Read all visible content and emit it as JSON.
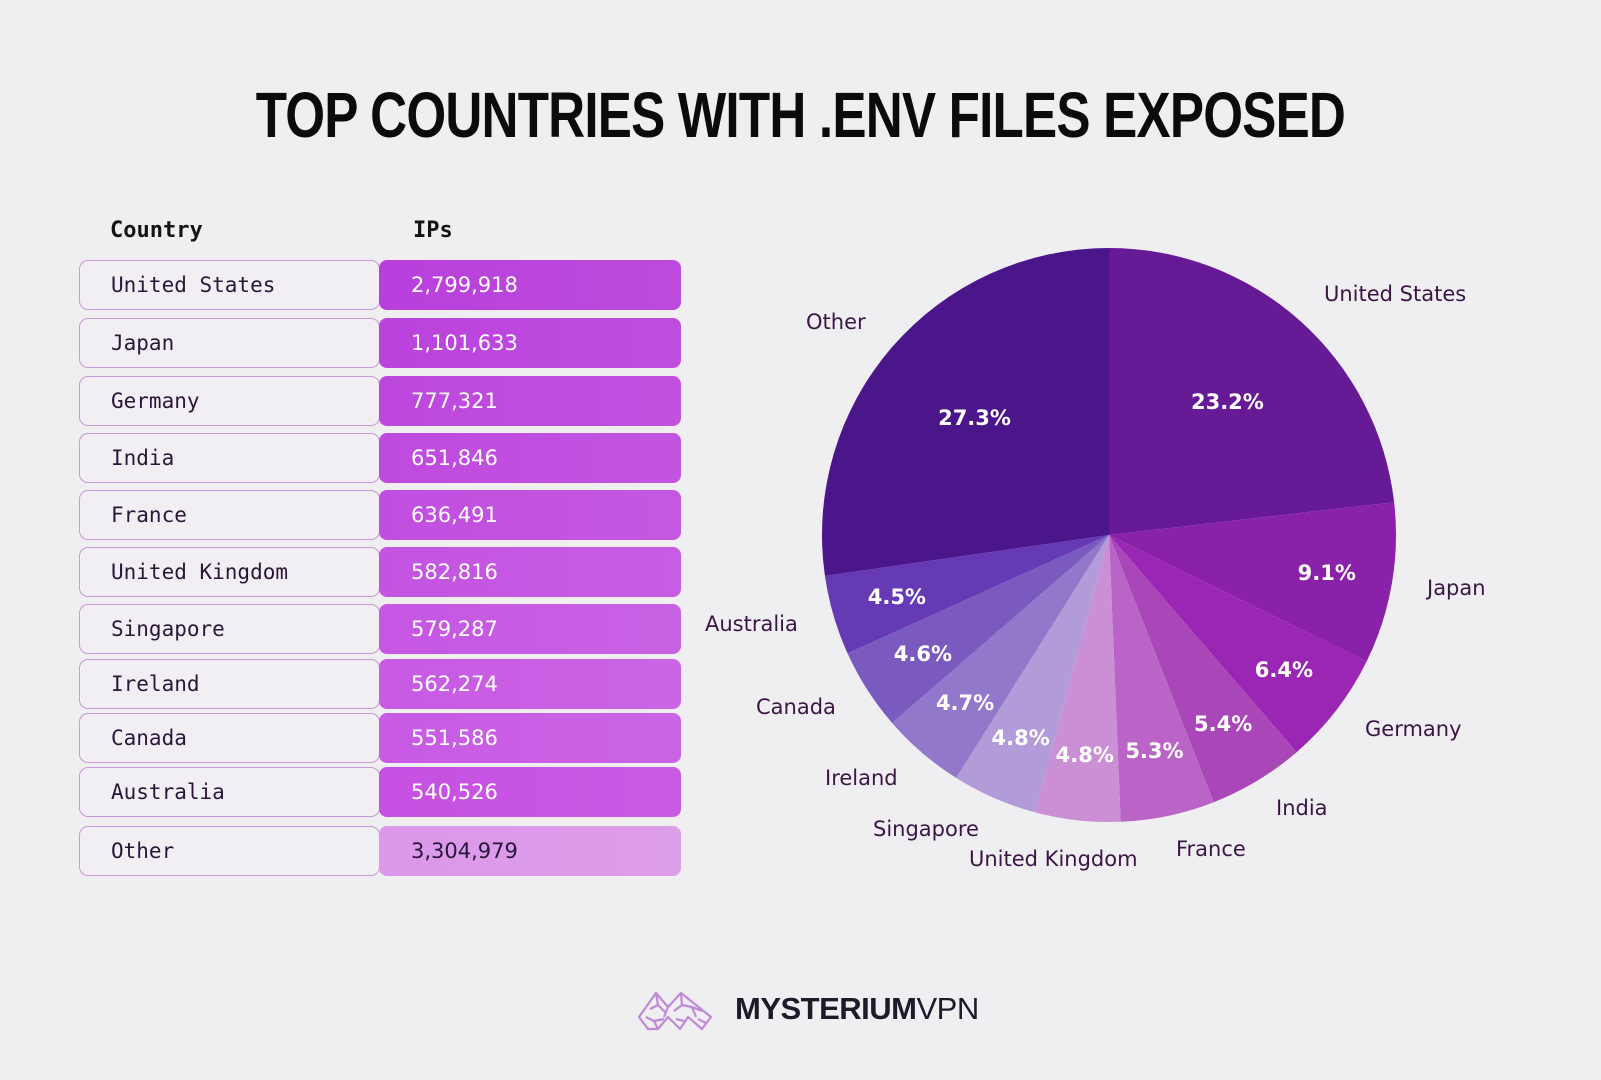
{
  "title": "TOP COUNTRIES WITH .ENV FILES EXPOSED",
  "table": {
    "headers": {
      "country": "Country",
      "ips": "IPs"
    },
    "rows": [
      {
        "country": "United States",
        "ips": "2,799,918",
        "color": "#b93fdc"
      },
      {
        "country": "Japan",
        "ips": "1,101,633",
        "color": "#bb42dd"
      },
      {
        "country": "Germany",
        "ips": "777,321",
        "color": "#bd47de"
      },
      {
        "country": "India",
        "ips": "651,846",
        "color": "#bf4adf"
      },
      {
        "country": "France",
        "ips": "636,491",
        "color": "#c14ee0"
      },
      {
        "country": "United Kingdom",
        "ips": "582,816",
        "color": "#c453e2"
      },
      {
        "country": "Singapore",
        "ips": "579,287",
        "color": "#c657e3"
      },
      {
        "country": "Ireland",
        "ips": "562,274",
        "color": "#c85ae4"
      },
      {
        "country": "Canada",
        "ips": "551,586",
        "color": "#c85ae4"
      },
      {
        "country": "Australia",
        "ips": "540,526",
        "color": "#c650e2"
      },
      {
        "country": "Other",
        "ips": "3,304,979",
        "color": "#dc98ea",
        "text_color": "#2a1638"
      }
    ]
  },
  "chart_data": {
    "type": "pie",
    "title": "TOP COUNTRIES WITH .ENV FILES EXPOSED",
    "start_angle_deg": 90,
    "direction": "clockwise",
    "categories": [
      "United States",
      "Japan",
      "Germany",
      "India",
      "France",
      "United Kingdom",
      "Singapore",
      "Ireland",
      "Canada",
      "Australia",
      "Other"
    ],
    "values": [
      2799918,
      1101633,
      777321,
      651846,
      636491,
      582816,
      579287,
      562274,
      551586,
      540526,
      3304979
    ],
    "percent_labels": [
      "23.2%",
      "9.1%",
      "6.4%",
      "5.4%",
      "5.3%",
      "4.8%",
      "4.8%",
      "4.7%",
      "4.6%",
      "4.5%",
      "27.3%"
    ],
    "percents": [
      23.2,
      9.1,
      6.4,
      5.4,
      5.3,
      4.8,
      4.8,
      4.7,
      4.6,
      4.5,
      27.3
    ],
    "colors": [
      "#671a96",
      "#8a22a9",
      "#9a26b3",
      "#a946b8",
      "#b964c6",
      "#cb8fd6",
      "#b19bd8",
      "#9278cb",
      "#7b5ac0",
      "#673ab5",
      "#4a168a"
    ],
    "legend": "none (direct labels)"
  },
  "footer": {
    "brand_bold": "MYSTERIUM",
    "brand_light": "VPN",
    "logo_icon": "mysterium-mountain-logo"
  }
}
